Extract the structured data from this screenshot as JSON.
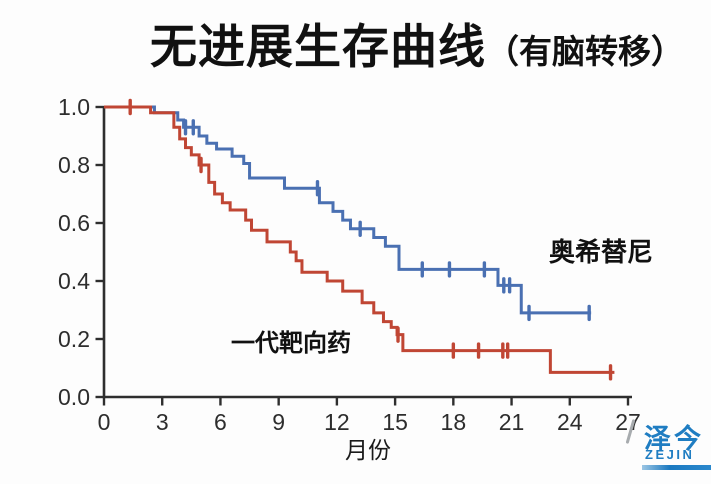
{
  "title": {
    "main": "无进展生存曲线",
    "paren": "（有脑转移）"
  },
  "chart_data": {
    "type": "line",
    "subtype": "kaplan-meier-step-survival",
    "title": "无进展生存曲线（有脑转移）",
    "xlabel": "月份",
    "ylabel": "",
    "xlim": [
      0,
      27
    ],
    "ylim": [
      0.0,
      1.0
    ],
    "x_ticks": [
      0,
      3,
      6,
      9,
      12,
      15,
      18,
      21,
      24,
      27
    ],
    "y_ticks": [
      "1.0",
      "0.8",
      "0.6",
      "0.4",
      "0.2",
      "0.0"
    ],
    "grid": "off",
    "legend_position": "inline-annotations",
    "axis_color": "#2e2e2e",
    "series": [
      {
        "name": "奥希替尼",
        "color": "#4a70b2",
        "end_month": 25.1,
        "steps": [
          [
            0,
            1.0
          ],
          [
            2.6,
            0.98
          ],
          [
            3.8,
            0.955
          ],
          [
            4.1,
            0.93
          ],
          [
            4.9,
            0.9
          ],
          [
            5.3,
            0.875
          ],
          [
            5.8,
            0.855
          ],
          [
            6.6,
            0.83
          ],
          [
            7.2,
            0.805
          ],
          [
            7.5,
            0.755
          ],
          [
            9.3,
            0.72
          ],
          [
            11.1,
            0.67
          ],
          [
            11.8,
            0.64
          ],
          [
            12.3,
            0.61
          ],
          [
            12.7,
            0.58
          ],
          [
            13.9,
            0.55
          ],
          [
            14.5,
            0.52
          ],
          [
            15.2,
            0.44
          ],
          [
            20.3,
            0.385
          ],
          [
            21.5,
            0.29
          ]
        ],
        "censor_months": [
          4.2,
          4.6,
          11.0,
          13.2,
          16.4,
          17.8,
          19.6,
          20.6,
          20.9,
          21.9,
          25.0
        ]
      },
      {
        "name": "一代靶向药",
        "color": "#c04634",
        "end_month": 26.3,
        "steps": [
          [
            0,
            1.0
          ],
          [
            2.4,
            0.98
          ],
          [
            3.6,
            0.93
          ],
          [
            3.9,
            0.89
          ],
          [
            4.2,
            0.86
          ],
          [
            4.5,
            0.835
          ],
          [
            4.9,
            0.8
          ],
          [
            5.4,
            0.74
          ],
          [
            5.7,
            0.7
          ],
          [
            6.1,
            0.67
          ],
          [
            6.5,
            0.645
          ],
          [
            7.3,
            0.61
          ],
          [
            7.6,
            0.575
          ],
          [
            8.4,
            0.535
          ],
          [
            9.6,
            0.5
          ],
          [
            9.9,
            0.47
          ],
          [
            10.2,
            0.43
          ],
          [
            11.5,
            0.4
          ],
          [
            12.3,
            0.365
          ],
          [
            13.3,
            0.325
          ],
          [
            13.9,
            0.29
          ],
          [
            14.4,
            0.26
          ],
          [
            14.8,
            0.24
          ],
          [
            15.1,
            0.215
          ],
          [
            15.4,
            0.16
          ],
          [
            23.0,
            0.085
          ]
        ],
        "censor_months": [
          1.35,
          5.0,
          15.15,
          18.0,
          19.3,
          20.55,
          20.8,
          26.1
        ]
      }
    ]
  },
  "logo": {
    "cn": "泽今",
    "en": "ZEJIN",
    "color": "#1f7dc2"
  }
}
